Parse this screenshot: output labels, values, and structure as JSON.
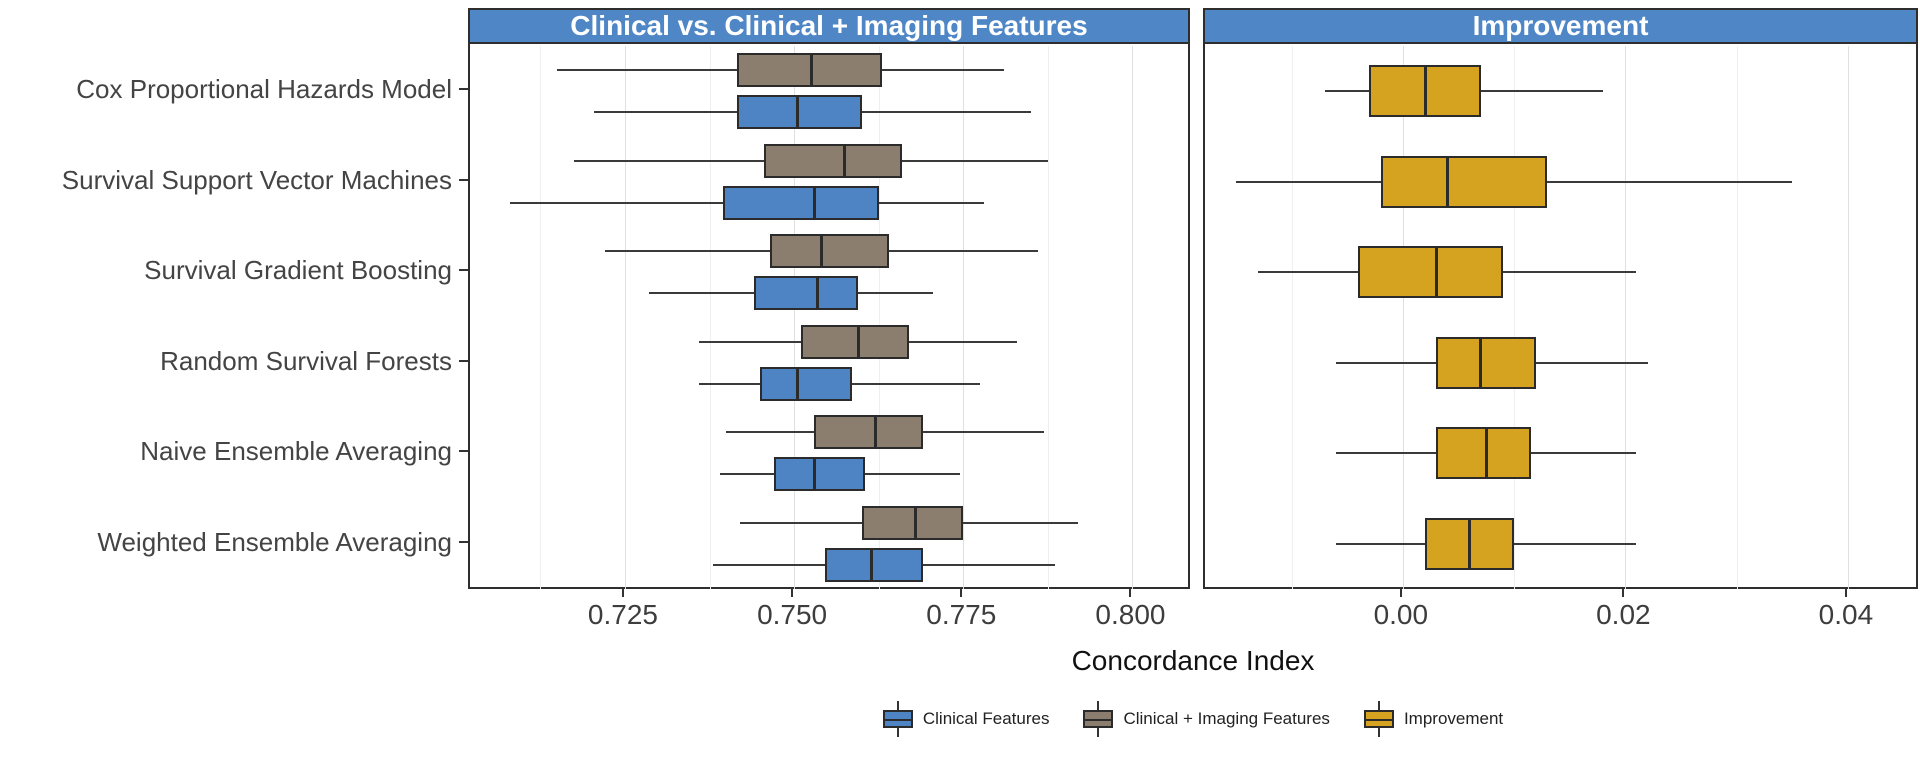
{
  "figure": {
    "xlabel": "Concordance Index"
  },
  "colors": {
    "header_bg": "#4f86c6",
    "clinical_blue": "#4e84c4",
    "imaging_gray": "#8c7e6e",
    "improvement_gold": "#d6a321",
    "box_border": "#2b2b2b",
    "panel_border": "#2e2e2e"
  },
  "legend": {
    "items": [
      {
        "label": "Clinical Features",
        "color": "#4e84c4"
      },
      {
        "label": "Clinical + Imaging Features",
        "color": "#8c7e6e"
      },
      {
        "label": "Improvement",
        "color": "#d6a321"
      }
    ]
  },
  "chart_data": {
    "type": "boxplot",
    "orientation": "horizontal",
    "xlabel": "Concordance Index",
    "grid": "on",
    "legend_position": "bottom",
    "categories": [
      "Cox Proportional Hazards Model",
      "Survival Support Vector Machines",
      "Survival Gradient Boosting",
      "Random Survival Forests",
      "Naive Ensemble Averaging",
      "Weighted Ensemble Averaging"
    ],
    "panels": [
      {
        "title": "Clinical vs. Clinical + Imaging Features",
        "xlim": [
          0.7024,
          0.8085
        ],
        "xticks": [
          0.725,
          0.75,
          0.775,
          0.8
        ],
        "xtick_labels": [
          "0.725",
          "0.750",
          "0.775",
          "0.800"
        ],
        "minor_xticks": [
          0.7125,
          0.7375,
          0.7625,
          0.7875
        ],
        "series": [
          {
            "name": "Clinical + Imaging Features",
            "color": "#8c7e6e",
            "boxes": [
              {
                "low": 0.715,
                "q1": 0.7415,
                "median": 0.7525,
                "q3": 0.763,
                "high": 0.781
              },
              {
                "low": 0.7175,
                "q1": 0.7455,
                "median": 0.7575,
                "q3": 0.766,
                "high": 0.7875
              },
              {
                "low": 0.722,
                "q1": 0.7465,
                "median": 0.754,
                "q3": 0.764,
                "high": 0.786
              },
              {
                "low": 0.736,
                "q1": 0.751,
                "median": 0.7595,
                "q3": 0.767,
                "high": 0.783
              },
              {
                "low": 0.74,
                "q1": 0.753,
                "median": 0.762,
                "q3": 0.769,
                "high": 0.787
              },
              {
                "low": 0.742,
                "q1": 0.76,
                "median": 0.768,
                "q3": 0.775,
                "high": 0.792
              }
            ]
          },
          {
            "name": "Clinical Features",
            "color": "#4e84c4",
            "boxes": [
              {
                "low": 0.7205,
                "q1": 0.7415,
                "median": 0.7505,
                "q3": 0.76,
                "high": 0.785
              },
              {
                "low": 0.708,
                "q1": 0.7395,
                "median": 0.753,
                "q3": 0.7625,
                "high": 0.778
              },
              {
                "low": 0.7285,
                "q1": 0.744,
                "median": 0.7535,
                "q3": 0.7595,
                "high": 0.7705
              },
              {
                "low": 0.736,
                "q1": 0.745,
                "median": 0.7505,
                "q3": 0.7585,
                "high": 0.7775
              },
              {
                "low": 0.739,
                "q1": 0.747,
                "median": 0.753,
                "q3": 0.7605,
                "high": 0.7745
              },
              {
                "low": 0.738,
                "q1": 0.7545,
                "median": 0.7615,
                "q3": 0.769,
                "high": 0.7885
              }
            ]
          }
        ]
      },
      {
        "title": "Improvement",
        "xlim": [
          -0.0176,
          0.0463
        ],
        "xticks": [
          0,
          0.02,
          0.04
        ],
        "xtick_labels": [
          "0.00",
          "0.02",
          "0.04"
        ],
        "minor_xticks": [
          -0.01,
          0.01,
          0.03
        ],
        "series": [
          {
            "name": "Improvement",
            "color": "#d6a321",
            "boxes": [
              {
                "low": -0.007,
                "q1": -0.003,
                "median": 0.002,
                "q3": 0.007,
                "high": 0.018
              },
              {
                "low": -0.015,
                "q1": -0.002,
                "median": 0.004,
                "q3": 0.013,
                "high": 0.035
              },
              {
                "low": -0.013,
                "q1": -0.004,
                "median": 0.003,
                "q3": 0.009,
                "high": 0.021
              },
              {
                "low": -0.006,
                "q1": 0.003,
                "median": 0.007,
                "q3": 0.012,
                "high": 0.022
              },
              {
                "low": -0.006,
                "q1": 0.003,
                "median": 0.0075,
                "q3": 0.0115,
                "high": 0.021
              },
              {
                "low": -0.006,
                "q1": 0.002,
                "median": 0.006,
                "q3": 0.01,
                "high": 0.021
              }
            ]
          }
        ]
      }
    ]
  }
}
